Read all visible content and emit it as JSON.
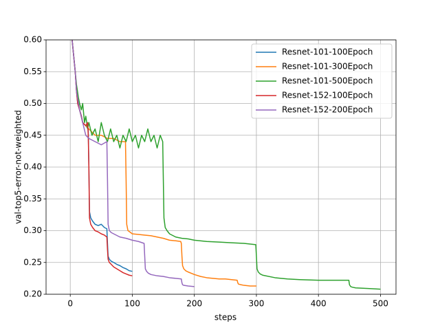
{
  "chart_data": {
    "type": "line",
    "xlabel": "steps",
    "ylabel": "val-top5-error-not-weighted",
    "xlim": [
      -39,
      525
    ],
    "ylim": [
      0.2,
      0.6
    ],
    "xticks": [
      0,
      100,
      200,
      300,
      400,
      500
    ],
    "yticks": [
      {
        "value": 0.2,
        "label": "0.20"
      },
      0.25,
      {
        "value": 0.3,
        "label": "0.30"
      },
      0.35,
      {
        "value": 0.4,
        "label": "0.40"
      },
      0.45,
      {
        "value": 0.5,
        "label": "0.50"
      },
      0.55,
      {
        "value": 0.6,
        "label": "0.60"
      }
    ],
    "grid": true,
    "legend": "upper right",
    "series": [
      {
        "name": "Resnet-101-100Epoch",
        "color": "#1f77b4",
        "x": [
          3,
          5,
          8,
          10,
          12,
          15,
          18,
          20,
          25,
          29,
          30,
          31,
          33,
          36,
          40,
          45,
          50,
          55,
          59,
          60,
          61,
          63,
          66,
          70,
          75,
          80,
          85,
          90,
          95,
          100
        ],
        "values": [
          0.6,
          0.58,
          0.55,
          0.52,
          0.5,
          0.49,
          0.48,
          0.47,
          0.465,
          0.46,
          0.4,
          0.33,
          0.32,
          0.315,
          0.31,
          0.308,
          0.31,
          0.305,
          0.303,
          0.28,
          0.26,
          0.255,
          0.252,
          0.25,
          0.247,
          0.245,
          0.242,
          0.24,
          0.237,
          0.236
        ]
      },
      {
        "name": "Resnet-101-300Epoch",
        "color": "#ff7f0e",
        "x": [
          3,
          5,
          8,
          10,
          15,
          20,
          25,
          30,
          40,
          50,
          60,
          70,
          80,
          89,
          90,
          91,
          93,
          96,
          100,
          110,
          120,
          130,
          140,
          150,
          160,
          170,
          178,
          179,
          180,
          181,
          183,
          186,
          190,
          200,
          210,
          220,
          230,
          240,
          250,
          260,
          269,
          270,
          271,
          275,
          280,
          290,
          300
        ],
        "values": [
          0.6,
          0.58,
          0.55,
          0.52,
          0.49,
          0.47,
          0.465,
          0.46,
          0.45,
          0.45,
          0.445,
          0.445,
          0.44,
          0.44,
          0.38,
          0.31,
          0.3,
          0.298,
          0.295,
          0.294,
          0.293,
          0.292,
          0.29,
          0.288,
          0.285,
          0.284,
          0.283,
          0.28,
          0.26,
          0.245,
          0.24,
          0.237,
          0.235,
          0.231,
          0.228,
          0.226,
          0.225,
          0.224,
          0.224,
          0.223,
          0.222,
          0.218,
          0.216,
          0.215,
          0.214,
          0.213,
          0.213
        ]
      },
      {
        "name": "Resnet-101-500Epoch",
        "color": "#2ca02c",
        "x": [
          3,
          5,
          8,
          10,
          13,
          15,
          18,
          20,
          23,
          25,
          28,
          30,
          35,
          40,
          45,
          50,
          55,
          60,
          65,
          70,
          75,
          80,
          85,
          90,
          95,
          100,
          105,
          110,
          115,
          120,
          125,
          130,
          135,
          140,
          145,
          149,
          150,
          151,
          153,
          156,
          160,
          170,
          180,
          190,
          200,
          220,
          240,
          260,
          280,
          299,
          300,
          301,
          303,
          306,
          310,
          330,
          350,
          370,
          400,
          420,
          449,
          450,
          452,
          455,
          460,
          480,
          500
        ],
        "values": [
          0.6,
          0.58,
          0.55,
          0.53,
          0.51,
          0.5,
          0.49,
          0.5,
          0.47,
          0.48,
          0.46,
          0.47,
          0.45,
          0.46,
          0.44,
          0.47,
          0.45,
          0.44,
          0.46,
          0.44,
          0.45,
          0.43,
          0.45,
          0.44,
          0.46,
          0.44,
          0.45,
          0.43,
          0.45,
          0.44,
          0.46,
          0.44,
          0.45,
          0.43,
          0.45,
          0.44,
          0.38,
          0.32,
          0.305,
          0.3,
          0.295,
          0.29,
          0.288,
          0.287,
          0.285,
          0.283,
          0.282,
          0.281,
          0.28,
          0.278,
          0.26,
          0.24,
          0.235,
          0.232,
          0.23,
          0.226,
          0.224,
          0.223,
          0.222,
          0.222,
          0.222,
          0.215,
          0.212,
          0.211,
          0.21,
          0.209,
          0.208
        ]
      },
      {
        "name": "Resnet-152-100Epoch",
        "color": "#d62728",
        "x": [
          3,
          5,
          8,
          10,
          12,
          15,
          18,
          20,
          25,
          28,
          29,
          30,
          31,
          33,
          36,
          40,
          45,
          50,
          55,
          59,
          60,
          61,
          63,
          66,
          70,
          75,
          80,
          85,
          90,
          95,
          100
        ],
        "values": [
          0.6,
          0.58,
          0.55,
          0.52,
          0.5,
          0.49,
          0.48,
          0.47,
          0.465,
          0.47,
          0.45,
          0.4,
          0.32,
          0.31,
          0.305,
          0.3,
          0.298,
          0.295,
          0.293,
          0.29,
          0.27,
          0.255,
          0.25,
          0.247,
          0.243,
          0.24,
          0.237,
          0.234,
          0.232,
          0.23,
          0.229
        ]
      },
      {
        "name": "Resnet-152-200Epoch",
        "color": "#9467bd",
        "x": [
          3,
          5,
          8,
          10,
          15,
          20,
          25,
          30,
          40,
          50,
          59,
          60,
          61,
          63,
          66,
          70,
          80,
          90,
          100,
          110,
          119,
          120,
          121,
          123,
          126,
          130,
          140,
          150,
          160,
          170,
          179,
          180,
          181,
          183,
          190,
          200
        ],
        "values": [
          0.6,
          0.58,
          0.55,
          0.52,
          0.49,
          0.47,
          0.45,
          0.445,
          0.44,
          0.435,
          0.44,
          0.38,
          0.31,
          0.3,
          0.297,
          0.295,
          0.29,
          0.288,
          0.285,
          0.283,
          0.28,
          0.26,
          0.24,
          0.236,
          0.233,
          0.231,
          0.229,
          0.228,
          0.226,
          0.225,
          0.224,
          0.218,
          0.215,
          0.214,
          0.213,
          0.212
        ]
      }
    ]
  }
}
